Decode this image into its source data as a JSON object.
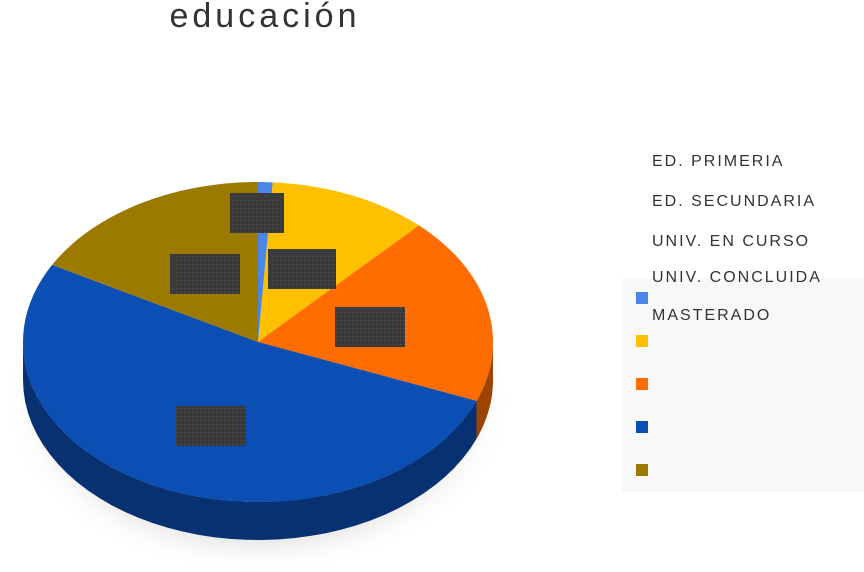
{
  "chart_data": {
    "type": "pie",
    "title": "educación",
    "categories": [
      "ED. PRIMERIA",
      "ED. SECUNDARIA",
      "UNIV. EN CURSO",
      "UNIV. CONCLUIDA",
      "MASTERADO"
    ],
    "values": [
      1,
      11,
      19,
      52,
      17
    ],
    "colors": [
      "#4a86e8",
      "#ffc000",
      "#ff6d01",
      "#0b4fb5",
      "#9c7a00"
    ],
    "legend": "right"
  }
}
